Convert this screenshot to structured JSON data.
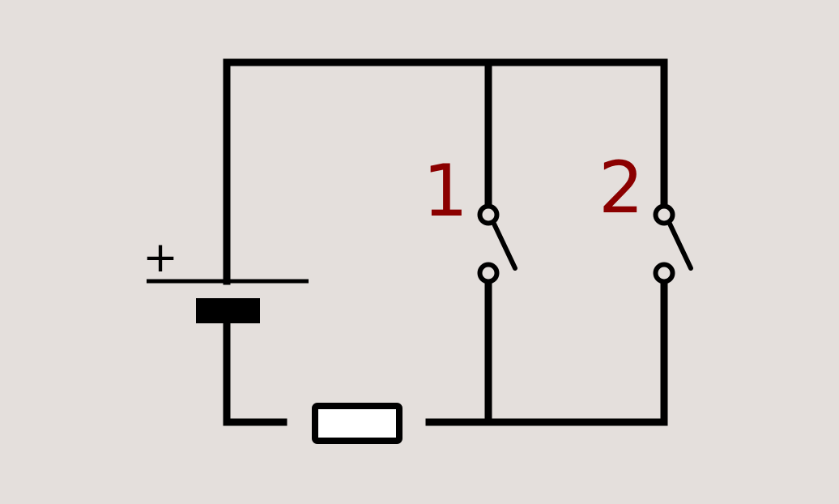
{
  "diagram": {
    "battery": {
      "polarity_label": "+"
    },
    "switches": [
      {
        "label": "1"
      },
      {
        "label": "2"
      }
    ],
    "colors": {
      "background": "#e4dfdc",
      "wire": "#000000",
      "switch_label": "#8b0000",
      "resistor_fill": "#ffffff"
    }
  }
}
